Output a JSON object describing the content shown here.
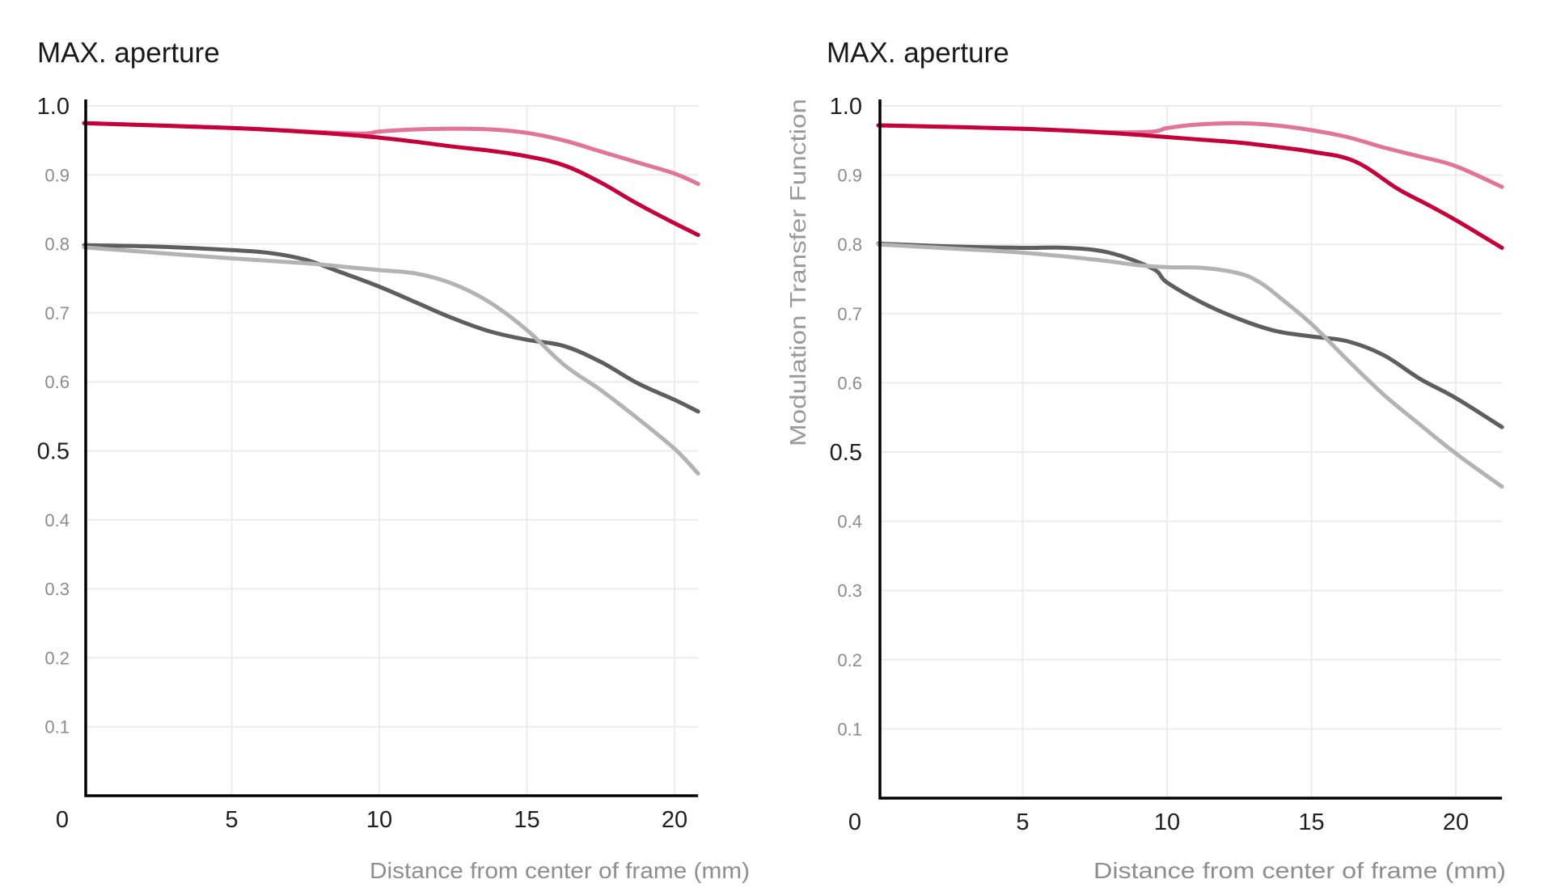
{
  "chart_data": [
    {
      "type": "line",
      "title": "MAX. aperture",
      "xlabel": "Distance from center of frame (mm)",
      "ylabel": "",
      "xlim": [
        0,
        20.8
      ],
      "ylim": [
        0,
        1.0
      ],
      "grid": true,
      "legend": "none",
      "x_ticks": [
        {
          "value": 0,
          "label": "0"
        },
        {
          "value": 5,
          "label": "5"
        },
        {
          "value": 10,
          "label": "10"
        },
        {
          "value": 15,
          "label": "15"
        },
        {
          "value": 20,
          "label": "20"
        }
      ],
      "y_ticks": [
        {
          "value": 1.0,
          "label": "1.0",
          "major": true
        },
        {
          "value": 0.9,
          "label": "0.9",
          "major": false
        },
        {
          "value": 0.8,
          "label": "0.8",
          "major": false
        },
        {
          "value": 0.7,
          "label": "0.7",
          "major": false
        },
        {
          "value": 0.6,
          "label": "0.6",
          "major": false
        },
        {
          "value": 0.5,
          "label": "0.5",
          "major": true
        },
        {
          "value": 0.4,
          "label": "0.4",
          "major": false
        },
        {
          "value": 0.3,
          "label": "0.3",
          "major": false
        },
        {
          "value": 0.2,
          "label": "0.2",
          "major": false
        },
        {
          "value": 0.1,
          "label": "0.1",
          "major": false
        }
      ],
      "series": [
        {
          "name": "pink",
          "color": "#e27595",
          "x": [
            0,
            5,
            8,
            9.5,
            10,
            11.25,
            12.5,
            13.75,
            15,
            16.25,
            17.5,
            18.75,
            20,
            20.8
          ],
          "y": [
            0.975,
            0.968,
            0.962,
            0.96,
            0.963,
            0.966,
            0.967,
            0.966,
            0.961,
            0.95,
            0.934,
            0.918,
            0.902,
            0.887
          ]
        },
        {
          "name": "red",
          "color": "#c5003a",
          "x": [
            0,
            5,
            8,
            10,
            11.25,
            12.5,
            13.75,
            15,
            16.25,
            17.5,
            18.75,
            20,
            20.8
          ],
          "y": [
            0.975,
            0.968,
            0.961,
            0.954,
            0.948,
            0.941,
            0.935,
            0.927,
            0.914,
            0.889,
            0.858,
            0.83,
            0.813
          ]
        },
        {
          "name": "dark grey",
          "color": "#5e5e5e",
          "x": [
            0,
            2.5,
            5,
            6.25,
            7.5,
            8.75,
            10,
            11.25,
            12.5,
            13.75,
            15,
            16.25,
            17.5,
            18.75,
            20,
            20.8
          ],
          "y": [
            0.798,
            0.796,
            0.791,
            0.787,
            0.777,
            0.758,
            0.738,
            0.715,
            0.692,
            0.673,
            0.661,
            0.652,
            0.629,
            0.598,
            0.574,
            0.557
          ]
        },
        {
          "name": "light grey",
          "color": "#b3b3b3",
          "x": [
            0,
            2.5,
            5,
            7.5,
            8.75,
            10,
            11.25,
            12.5,
            13.75,
            15,
            16.25,
            17.5,
            18.75,
            20,
            20.8
          ],
          "y": [
            0.795,
            0.787,
            0.779,
            0.772,
            0.767,
            0.762,
            0.757,
            0.742,
            0.715,
            0.675,
            0.625,
            0.588,
            0.547,
            0.503,
            0.467
          ]
        }
      ]
    },
    {
      "type": "line",
      "title": "MAX. aperture",
      "xlabel": "Distance from center of frame (mm)",
      "ylabel": "Modulation Transfer Function",
      "xlim": [
        0,
        21.6
      ],
      "ylim": [
        0,
        1.0
      ],
      "grid": true,
      "legend": "none",
      "x_ticks": [
        {
          "value": 0,
          "label": "0"
        },
        {
          "value": 5,
          "label": "5"
        },
        {
          "value": 10,
          "label": "10"
        },
        {
          "value": 15,
          "label": "15"
        },
        {
          "value": 20,
          "label": "20"
        }
      ],
      "y_ticks": [
        {
          "value": 1.0,
          "label": "1.0",
          "major": true
        },
        {
          "value": 0.9,
          "label": "0.9",
          "major": false
        },
        {
          "value": 0.8,
          "label": "0.8",
          "major": false
        },
        {
          "value": 0.7,
          "label": "0.7",
          "major": false
        },
        {
          "value": 0.6,
          "label": "0.6",
          "major": false
        },
        {
          "value": 0.5,
          "label": "0.5",
          "major": true
        },
        {
          "value": 0.4,
          "label": "0.4",
          "major": false
        },
        {
          "value": 0.3,
          "label": "0.3",
          "major": false
        },
        {
          "value": 0.2,
          "label": "0.2",
          "major": false
        },
        {
          "value": 0.1,
          "label": "0.1",
          "major": false
        }
      ],
      "series": [
        {
          "name": "pink",
          "color": "#e27595",
          "x": [
            0,
            5,
            8,
            9.5,
            10,
            11,
            12.5,
            13.75,
            15,
            16.25,
            17.5,
            18.75,
            20,
            21.6
          ],
          "y": [
            0.972,
            0.967,
            0.962,
            0.963,
            0.968,
            0.973,
            0.975,
            0.972,
            0.965,
            0.955,
            0.94,
            0.927,
            0.913,
            0.883
          ]
        },
        {
          "name": "red",
          "color": "#c5003a",
          "x": [
            0,
            5,
            8,
            10,
            11.25,
            12.5,
            13.75,
            15,
            16.5,
            18,
            19,
            20,
            21.6
          ],
          "y": [
            0.972,
            0.967,
            0.961,
            0.955,
            0.951,
            0.947,
            0.941,
            0.934,
            0.92,
            0.88,
            0.858,
            0.835,
            0.795
          ]
        },
        {
          "name": "dark grey",
          "color": "#5e5e5e",
          "x": [
            0,
            2.5,
            5,
            6.5,
            8,
            9.5,
            10,
            11.25,
            12.5,
            13.75,
            15,
            16.25,
            17.5,
            18.75,
            20,
            21.6
          ],
          "y": [
            0.801,
            0.797,
            0.795,
            0.795,
            0.788,
            0.765,
            0.745,
            0.715,
            0.692,
            0.675,
            0.667,
            0.66,
            0.64,
            0.606,
            0.578,
            0.536
          ]
        },
        {
          "name": "light grey",
          "color": "#b3b3b3",
          "x": [
            0,
            2.5,
            5,
            7.5,
            9,
            10,
            11.25,
            12.5,
            13.25,
            14,
            15,
            16.25,
            17.5,
            18.75,
            20,
            21.6
          ],
          "y": [
            0.8,
            0.794,
            0.788,
            0.778,
            0.77,
            0.767,
            0.766,
            0.758,
            0.744,
            0.72,
            0.685,
            0.633,
            0.583,
            0.54,
            0.498,
            0.45
          ]
        }
      ]
    }
  ]
}
